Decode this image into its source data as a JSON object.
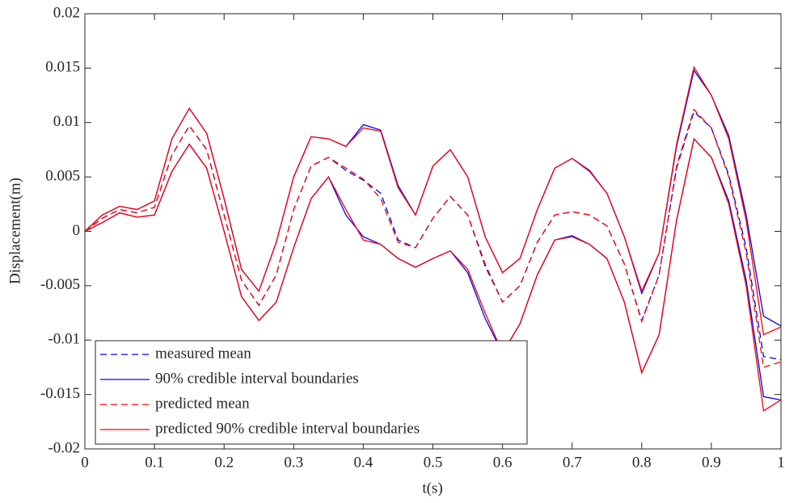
{
  "chart_data": {
    "type": "line",
    "xlabel": "t(s)",
    "ylabel": "Displacement(m)",
    "x": [
      0,
      0.025,
      0.05,
      0.075,
      0.1,
      0.125,
      0.15,
      0.175,
      0.2,
      0.225,
      0.25,
      0.275,
      0.3,
      0.325,
      0.35,
      0.375,
      0.4,
      0.425,
      0.45,
      0.475,
      0.5,
      0.525,
      0.55,
      0.575,
      0.6,
      0.625,
      0.65,
      0.675,
      0.7,
      0.725,
      0.75,
      0.775,
      0.8,
      0.825,
      0.85,
      0.875,
      0.9,
      0.925,
      0.95,
      0.975,
      1
    ],
    "xlim": [
      0,
      1
    ],
    "xticks": [
      0,
      0.1,
      0.2,
      0.3,
      0.4,
      0.5,
      0.6,
      0.7,
      0.8,
      0.9,
      1
    ],
    "ylim": [
      -0.02,
      0.02
    ],
    "yticks": [
      -0.02,
      -0.015,
      -0.01,
      -0.005,
      0,
      0.005,
      0.01,
      0.015,
      0.02
    ],
    "legend": "lower left",
    "series": [
      {
        "name": "measured mean",
        "color": "#0000ff",
        "dashed": true,
        "values": [
          0,
          0.0012,
          0.002,
          0.0017,
          0.0022,
          0.007,
          0.0097,
          0.0075,
          0.0015,
          -0.0045,
          -0.0068,
          -0.004,
          0.002,
          0.006,
          0.0068,
          0.0056,
          0.0047,
          0.0035,
          -0.0008,
          -0.0015,
          0.0012,
          0.0032,
          0.0015,
          -0.0032,
          -0.0065,
          -0.005,
          -0.001,
          0.0015,
          0.0018,
          0.0015,
          0.0005,
          -0.003,
          -0.0082,
          -0.004,
          0.0058,
          0.011,
          0.0095,
          0.0052,
          -0.0015,
          -0.0115,
          -0.0118
        ]
      },
      {
        "name": "90% credible interval boundaries",
        "color": "#0000ff",
        "dashed": false,
        "upper": [
          0,
          0.0015,
          0.0023,
          0.002,
          0.0028,
          0.0085,
          0.0113,
          0.009,
          0.003,
          -0.0035,
          -0.0055,
          -0.001,
          0.005,
          0.0087,
          0.0085,
          0.0078,
          0.0098,
          0.0093,
          0.0042,
          0.0015,
          0.006,
          0.0075,
          0.005,
          -0.0005,
          -0.0038,
          -0.0025,
          0.002,
          0.0058,
          0.0067,
          0.0056,
          0.0035,
          -0.0005,
          -0.0057,
          -0.002,
          0.0078,
          0.0148,
          0.0125,
          0.0088,
          0.0015,
          -0.0078,
          -0.0087
        ],
        "lower": [
          0,
          0.0008,
          0.0017,
          0.0013,
          0.0015,
          0.0055,
          0.008,
          0.0058,
          0,
          -0.006,
          -0.0082,
          -0.0065,
          -0.0015,
          0.003,
          0.005,
          0.0015,
          -0.0005,
          -0.0012,
          -0.0025,
          -0.0033,
          -0.0025,
          -0.0018,
          -0.0038,
          -0.008,
          -0.0112,
          -0.0085,
          -0.004,
          -0.0008,
          -0.0004,
          -0.0012,
          -0.0025,
          -0.0065,
          -0.013,
          -0.0095,
          0.001,
          0.0085,
          0.0068,
          0.0028,
          -0.0045,
          -0.0152,
          -0.0155
        ]
      },
      {
        "name": "predicted mean",
        "color": "#ff0000",
        "dashed": true,
        "values": [
          0,
          0.0012,
          0.002,
          0.0017,
          0.0022,
          0.007,
          0.0097,
          0.0075,
          0.0015,
          -0.0045,
          -0.0068,
          -0.004,
          0.002,
          0.006,
          0.0068,
          0.0058,
          0.0048,
          0.003,
          -0.001,
          -0.0015,
          0.0012,
          0.0032,
          0.0015,
          -0.003,
          -0.0065,
          -0.005,
          -0.001,
          0.0015,
          0.0018,
          0.0015,
          0.0005,
          -0.003,
          -0.0083,
          -0.004,
          0.006,
          0.0112,
          0.0095,
          0.005,
          -0.002,
          -0.0125,
          -0.012
        ]
      },
      {
        "name": "predicted 90% credible interval boundaries",
        "color": "#ff0000",
        "dashed": false,
        "upper": [
          0,
          0.0015,
          0.0023,
          0.002,
          0.0028,
          0.0085,
          0.0113,
          0.009,
          0.003,
          -0.0035,
          -0.0055,
          -0.001,
          0.005,
          0.0087,
          0.0085,
          0.0078,
          0.0095,
          0.0092,
          0.004,
          0.0015,
          0.006,
          0.0075,
          0.005,
          -0.0005,
          -0.0038,
          -0.0025,
          0.002,
          0.0058,
          0.0067,
          0.0055,
          0.0035,
          -0.0005,
          -0.0055,
          -0.002,
          0.008,
          0.0151,
          0.0125,
          0.0085,
          0.001,
          -0.0095,
          -0.0088
        ],
        "lower": [
          0,
          0.0008,
          0.0017,
          0.0013,
          0.0015,
          0.0055,
          0.008,
          0.0058,
          0,
          -0.006,
          -0.0082,
          -0.0065,
          -0.0015,
          0.003,
          0.005,
          0.002,
          -0.0008,
          -0.0012,
          -0.0025,
          -0.0033,
          -0.0025,
          -0.0018,
          -0.0035,
          -0.0075,
          -0.0112,
          -0.0085,
          -0.004,
          -0.0008,
          -0.0005,
          -0.0012,
          -0.0025,
          -0.0065,
          -0.013,
          -0.0095,
          0.001,
          0.0085,
          0.0068,
          0.0025,
          -0.005,
          -0.0165,
          -0.0155
        ]
      }
    ]
  }
}
